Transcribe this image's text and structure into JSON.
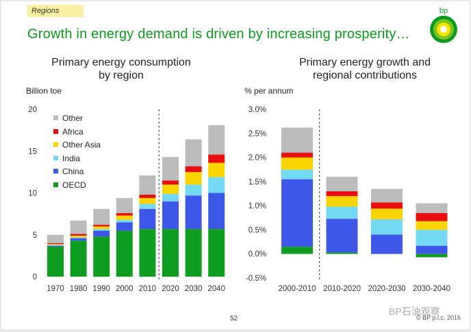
{
  "header": {
    "tag": "Regions",
    "title": "Growth in energy demand is driven by increasing prosperity…",
    "logo_text": "bp"
  },
  "footer": {
    "page_number": "52",
    "copyright": "© BP p.l.c. 2016",
    "watermark": "BP石油观察"
  },
  "colors": {
    "Other": "#bcbcbc",
    "Africa": "#e8100f",
    "Other Asia": "#fcd500",
    "India": "#74d9f2",
    "China": "#3f57e6",
    "OECD": "#0e9d20",
    "brand_green": "#0c9a1e",
    "tag_yellow": "#fbf1a2"
  },
  "chart_data": [
    {
      "type": "bar",
      "stacked": true,
      "title": "Primary energy consumption\nby region",
      "ylabel": "Billion toe",
      "ylim": [
        0,
        20
      ],
      "yticks": [
        "0",
        "5",
        "10",
        "15",
        "20"
      ],
      "categories": [
        "1970",
        "1980",
        "1990",
        "2000",
        "2010",
        "2020",
        "2030",
        "2040"
      ],
      "divider_after": "2010",
      "legend_position": "top-left",
      "legend": [
        "Other",
        "Africa",
        "Other Asia",
        "India",
        "China",
        "OECD"
      ],
      "series": [
        {
          "name": "OECD",
          "values": [
            3.6,
            4.3,
            4.8,
            5.5,
            5.7,
            5.7,
            5.7,
            5.7
          ]
        },
        {
          "name": "China",
          "values": [
            0.1,
            0.3,
            0.7,
            1.0,
            2.4,
            3.3,
            4.0,
            4.3
          ]
        },
        {
          "name": "India",
          "values": [
            0.1,
            0.1,
            0.2,
            0.3,
            0.6,
            0.9,
            1.3,
            1.9
          ]
        },
        {
          "name": "Other Asia",
          "values": [
            0.1,
            0.2,
            0.3,
            0.5,
            0.7,
            1.1,
            1.5,
            1.7
          ]
        },
        {
          "name": "Africa",
          "values": [
            0.1,
            0.2,
            0.2,
            0.3,
            0.4,
            0.5,
            0.7,
            1.0
          ]
        },
        {
          "name": "Other",
          "values": [
            1.0,
            1.6,
            1.9,
            1.8,
            2.3,
            2.8,
            3.2,
            3.5
          ]
        }
      ]
    },
    {
      "type": "bar",
      "stacked": true,
      "title": "Primary energy growth and\nregional contributions",
      "ylabel": "% per annum",
      "ylim": [
        -0.5,
        3.0
      ],
      "yticks": [
        "-0.5%",
        "0.0%",
        "0.5%",
        "1.0%",
        "1.5%",
        "2.0%",
        "2.5%",
        "3.0%"
      ],
      "categories": [
        "2000-2010",
        "2010-2020",
        "2020-2030",
        "2030-2040"
      ],
      "divider_after": "2000-2010",
      "series": [
        {
          "name": "OECD",
          "values": [
            0.15,
            0.03,
            0.0,
            -0.07
          ]
        },
        {
          "name": "China",
          "values": [
            1.4,
            0.7,
            0.4,
            0.17
          ]
        },
        {
          "name": "India",
          "values": [
            0.2,
            0.25,
            0.32,
            0.33
          ]
        },
        {
          "name": "Other Asia",
          "values": [
            0.25,
            0.22,
            0.22,
            0.18
          ]
        },
        {
          "name": "Africa",
          "values": [
            0.1,
            0.1,
            0.13,
            0.17
          ]
        },
        {
          "name": "Other",
          "values": [
            0.52,
            0.3,
            0.28,
            0.2
          ]
        }
      ]
    }
  ]
}
